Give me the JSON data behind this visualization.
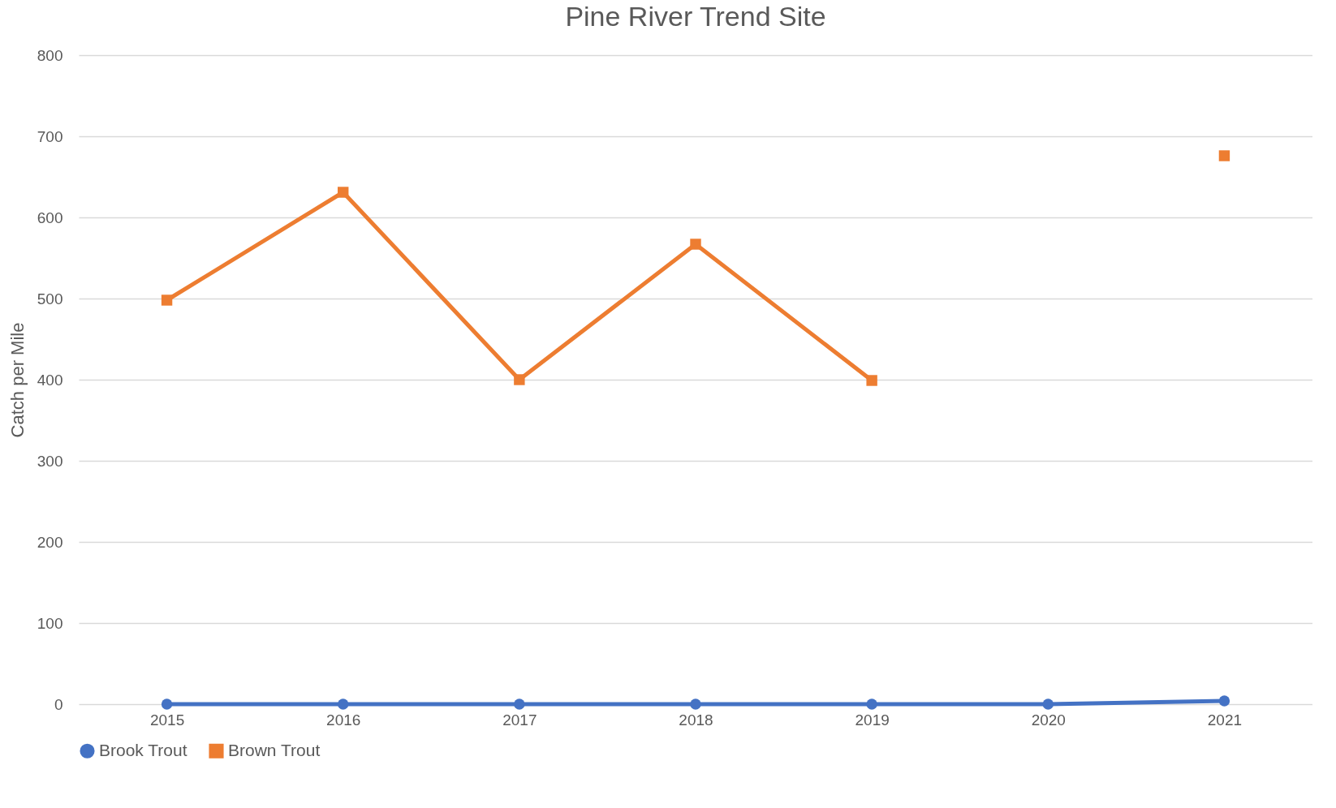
{
  "chart_data": {
    "type": "line",
    "title": "Pine River Trend Site",
    "ylabel": "Catch per Mile",
    "categories": [
      "2015",
      "2016",
      "2017",
      "2018",
      "2019",
      "2020",
      "2021"
    ],
    "series": [
      {
        "name": "Brook Trout",
        "color": "#4472c4",
        "marker": "circle",
        "values": [
          0,
          0,
          0,
          0,
          0,
          0,
          4
        ]
      },
      {
        "name": "Brown Trout",
        "color": "#ed7d31",
        "marker": "square",
        "values": [
          498,
          631,
          400,
          567,
          399,
          null,
          676
        ]
      }
    ],
    "ylim": [
      0,
      800
    ],
    "yticks": [
      0,
      100,
      200,
      300,
      400,
      500,
      600,
      700,
      800
    ],
    "grid": "y",
    "legend": "bottom"
  }
}
